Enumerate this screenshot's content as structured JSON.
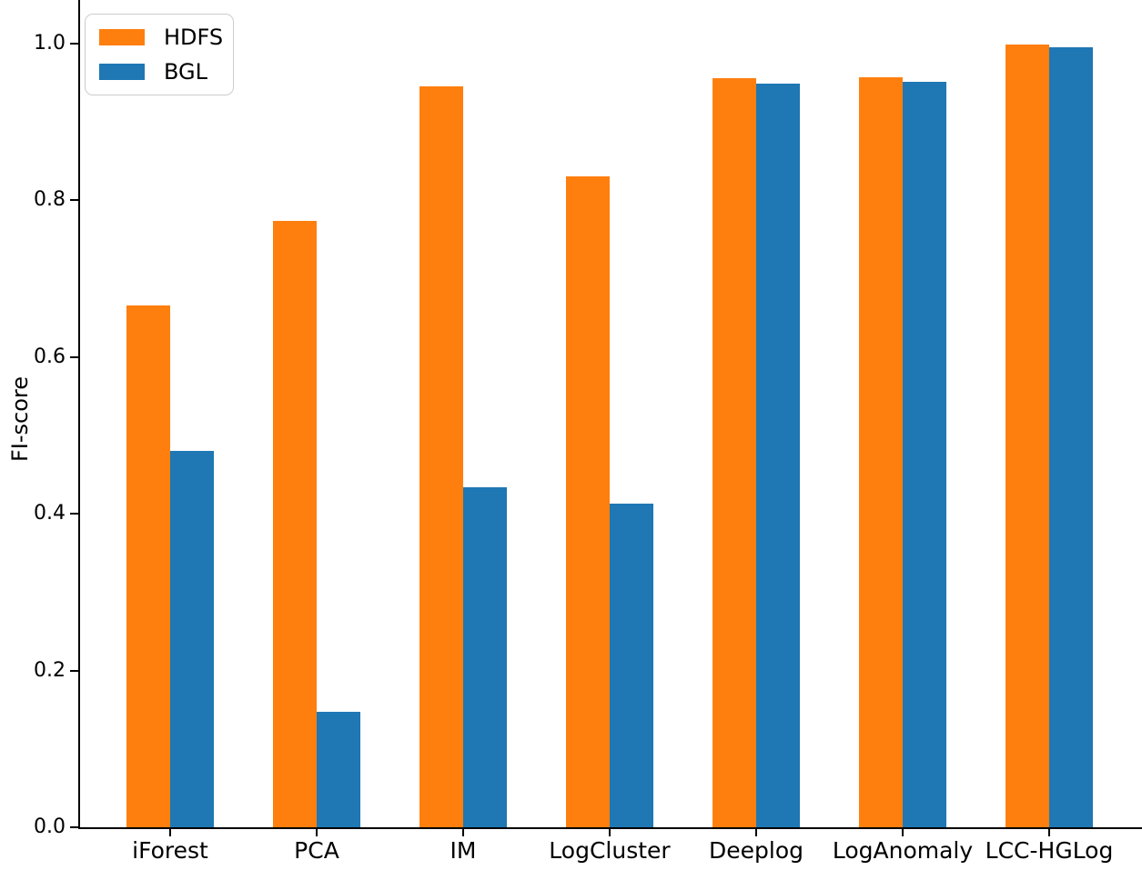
{
  "chart_data": {
    "type": "bar",
    "title": "",
    "xlabel": "",
    "ylabel": "FI-score",
    "categories": [
      "iForest",
      "PCA",
      "IM",
      "LogCluster",
      "Deeplog",
      "LogAnomaly",
      "LCC-HGLog"
    ],
    "series": [
      {
        "name": "HDFS",
        "color": "#ff7f0e",
        "values": [
          0.665,
          0.773,
          0.945,
          0.83,
          0.955,
          0.956,
          0.998
        ]
      },
      {
        "name": "BGL",
        "color": "#1f77b4",
        "values": [
          0.48,
          0.147,
          0.434,
          0.413,
          0.948,
          0.951,
          0.995
        ]
      }
    ],
    "yticks": [
      0.0,
      0.2,
      0.4,
      0.6,
      0.8,
      1.0
    ],
    "ytick_labels": [
      "0.0",
      "0.2",
      "0.4",
      "0.6",
      "0.8",
      "1.0"
    ],
    "ylim": [
      0.0,
      1.055
    ],
    "grid": false,
    "legend_position": "upper left",
    "bar_width_fraction": 0.3
  }
}
